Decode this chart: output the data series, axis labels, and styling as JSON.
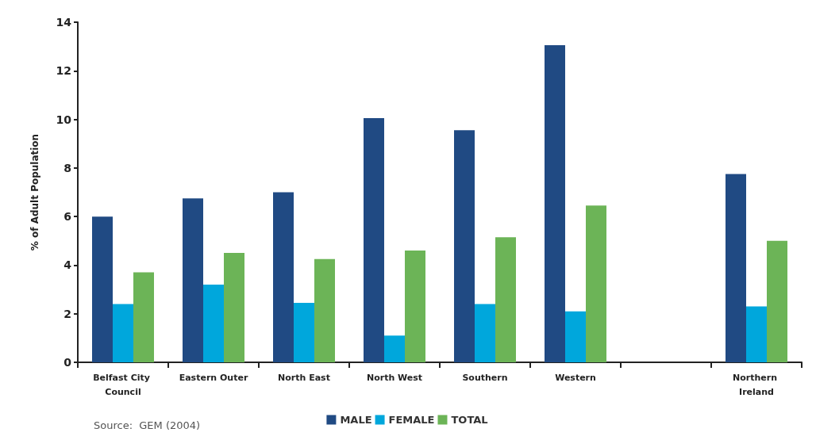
{
  "chart_data": {
    "type": "bar",
    "ylabel": "% of Adult Population",
    "categories": [
      "Belfast City Council",
      "Eastern Outer",
      "North East",
      "North West",
      "Southern",
      "Western",
      null,
      "Northern Ireland"
    ],
    "series": [
      {
        "name": "MALE",
        "color": "#204a83",
        "values": [
          6.0,
          6.75,
          7.0,
          10.05,
          9.55,
          13.05,
          null,
          7.75
        ]
      },
      {
        "name": "FEMALE",
        "color": "#00a7dc",
        "values": [
          2.4,
          3.2,
          2.45,
          1.1,
          2.4,
          2.1,
          null,
          2.3
        ]
      },
      {
        "name": "TOTAL",
        "color": "#6cb457",
        "values": [
          3.7,
          4.5,
          4.25,
          4.6,
          5.15,
          6.45,
          null,
          5.0
        ]
      }
    ],
    "ylim": [
      0,
      14
    ],
    "yticks": [
      0,
      2,
      4,
      6,
      8,
      10,
      12,
      14
    ],
    "grid": false,
    "legend": "bottom",
    "annotations": [
      "Source:  GEM (2004)"
    ]
  }
}
